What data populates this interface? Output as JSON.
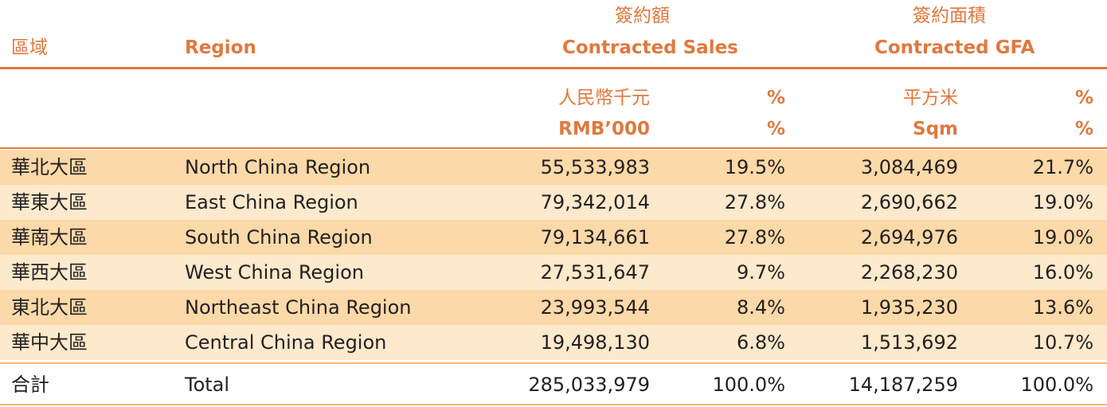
{
  "header": {
    "region_zh": "區域",
    "region_en": "Region",
    "sales_zh": "簽約額",
    "sales_en": "Contracted Sales",
    "gfa_zh": "簽約面積",
    "gfa_en": "Contracted GFA"
  },
  "units": {
    "sales_unit_zh": "人民幣千元",
    "sales_unit_en": "RMB’000",
    "sales_pct_zh": "%",
    "sales_pct_en": "%",
    "gfa_unit_zh": "平方米",
    "gfa_unit_en": "Sqm",
    "gfa_pct_zh": "%",
    "gfa_pct_en": "%"
  },
  "rows": [
    {
      "zh": "華北大區",
      "en": "North China Region",
      "sales": "55,533,983",
      "sales_pct": "19.5%",
      "gfa": "3,084,469",
      "gfa_pct": "21.7%"
    },
    {
      "zh": "華東大區",
      "en": "East China Region",
      "sales": "79,342,014",
      "sales_pct": "27.8%",
      "gfa": "2,690,662",
      "gfa_pct": "19.0%"
    },
    {
      "zh": "華南大區",
      "en": "South China Region",
      "sales": "79,134,661",
      "sales_pct": "27.8%",
      "gfa": "2,694,976",
      "gfa_pct": "19.0%"
    },
    {
      "zh": "華西大區",
      "en": "West China Region",
      "sales": "27,531,647",
      "sales_pct": "9.7%",
      "gfa": "2,268,230",
      "gfa_pct": "16.0%"
    },
    {
      "zh": "東北大區",
      "en": "Northeast China Region",
      "sales": "23,993,544",
      "sales_pct": "8.4%",
      "gfa": "1,935,230",
      "gfa_pct": "13.6%"
    },
    {
      "zh": "華中大區",
      "en": "Central China Region",
      "sales": "19,498,130",
      "sales_pct": "6.8%",
      "gfa": "1,513,692",
      "gfa_pct": "10.7%"
    }
  ],
  "total": {
    "zh": "合計",
    "en": "Total",
    "sales": "285,033,979",
    "sales_pct": "100.0%",
    "gfa": "14,187,259",
    "gfa_pct": "100.0%"
  },
  "colors": {
    "accent": "#e0793e",
    "row_dark": "#fcd9a8",
    "row_light": "#fde9cc",
    "rule_light": "#f5b66a"
  }
}
